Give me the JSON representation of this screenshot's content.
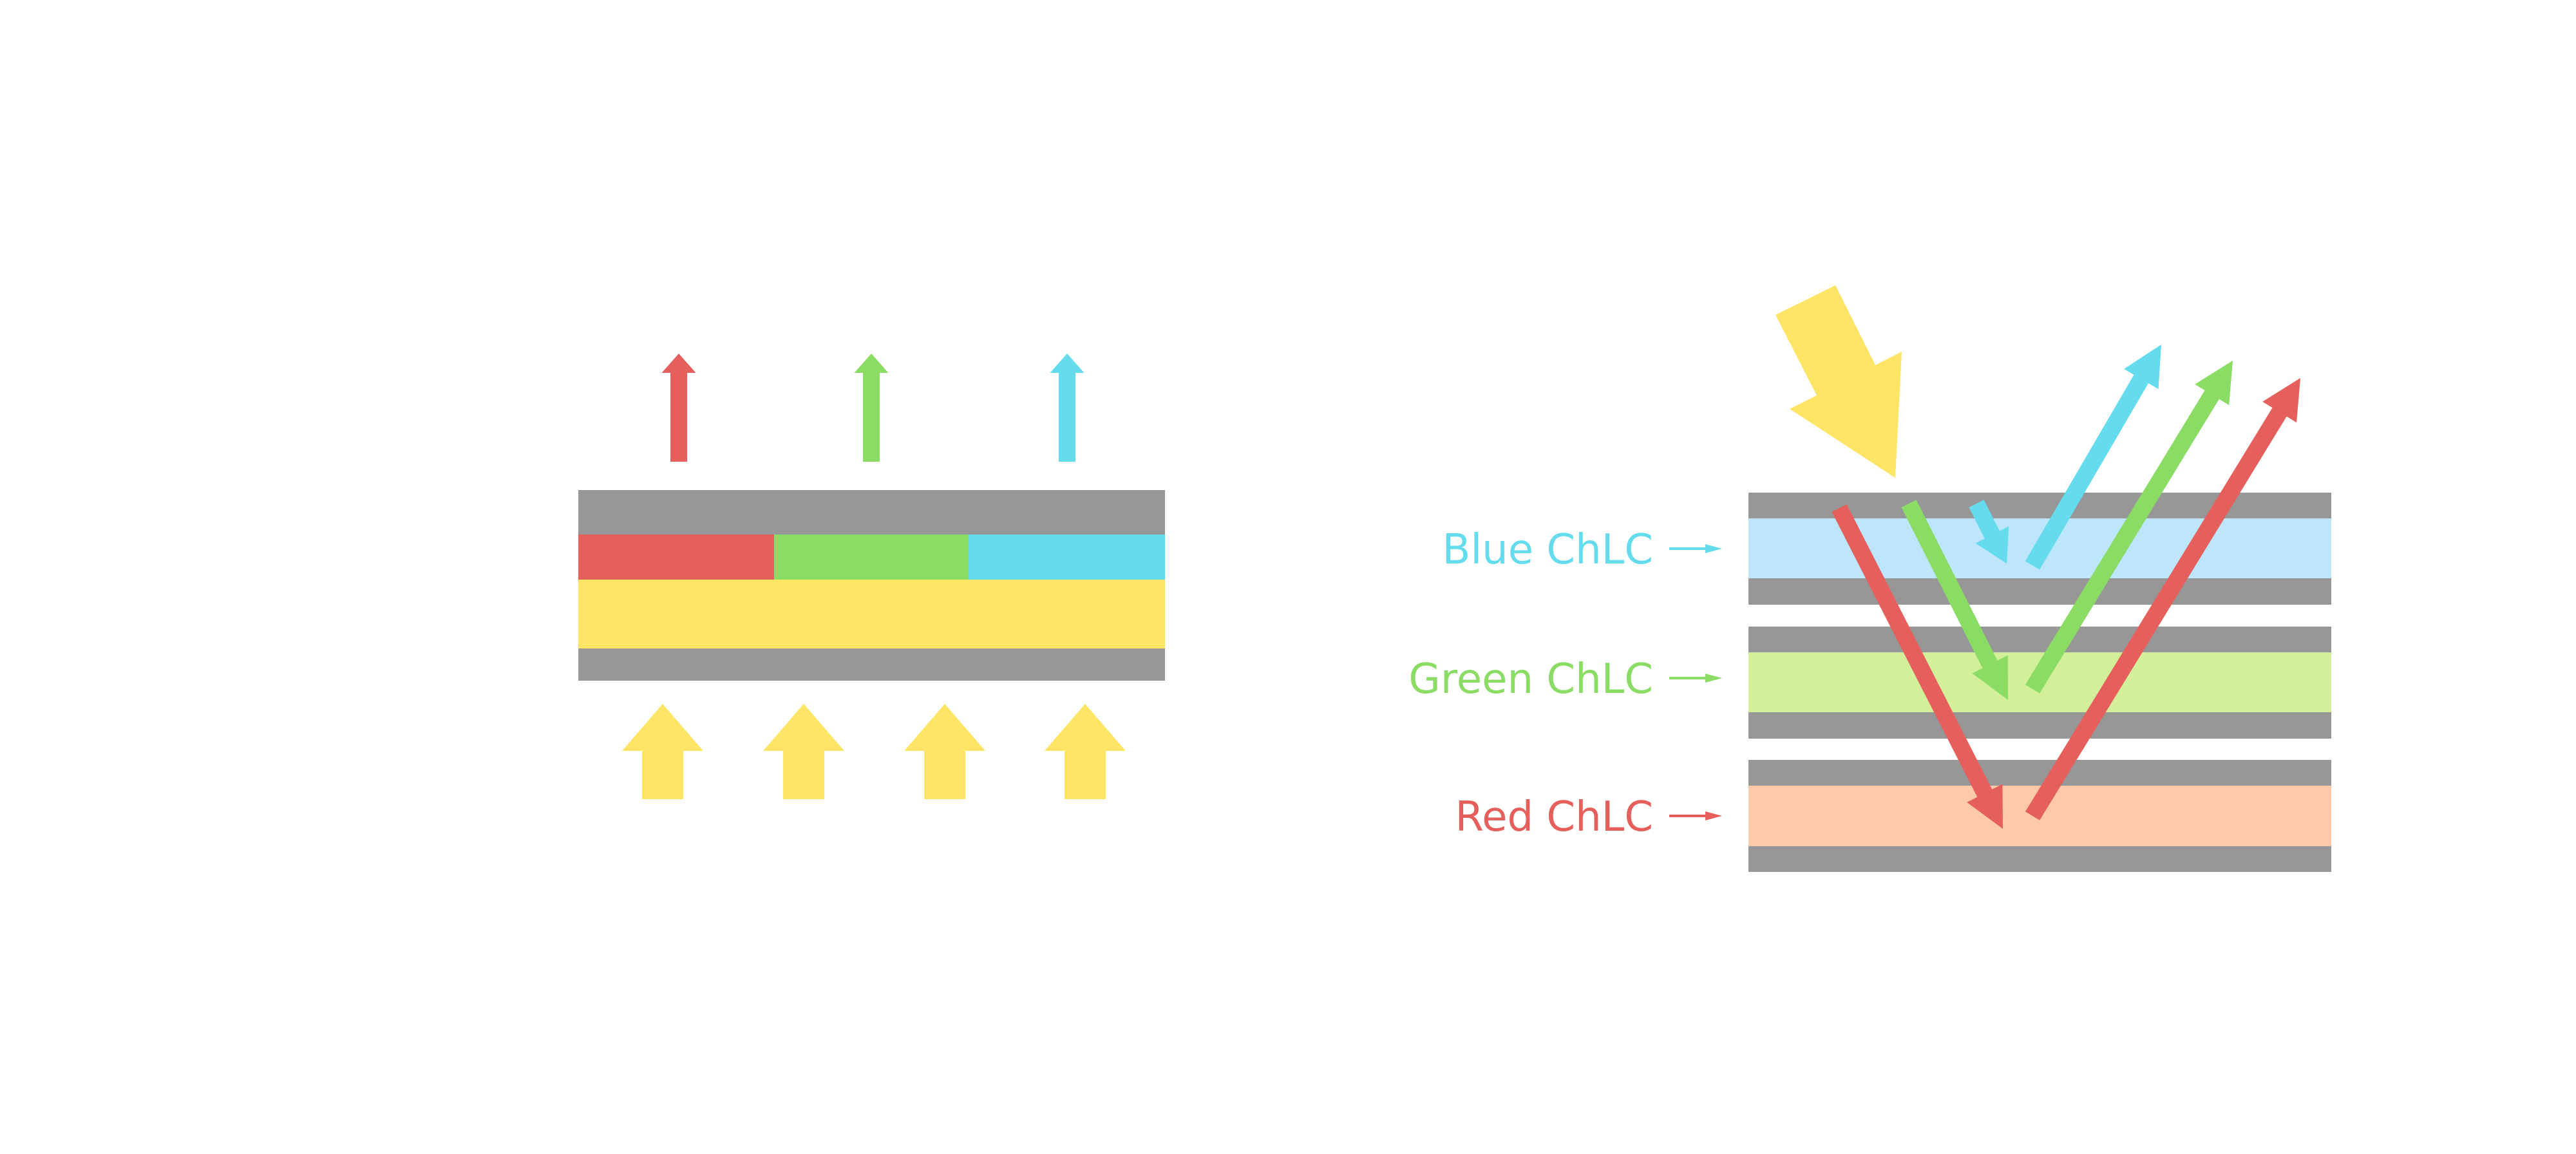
{
  "colors": {
    "substrate": "#979797",
    "red": "#e5605c",
    "green": "#8adc64",
    "blue": "#64dcee",
    "light": "#ffe566",
    "blue_layer": "#bde5fc",
    "green_layer": "#d3ef9a",
    "red_layer": "#fdc9aa"
  },
  "left_diagram": {
    "filter_segments": [
      "red",
      "green",
      "blue"
    ],
    "output_arrows": [
      "red",
      "green",
      "blue"
    ],
    "backlight_arrows": 4
  },
  "right_diagram": {
    "layers": [
      {
        "label": "Blue ChLC",
        "color_key": "blue"
      },
      {
        "label": "Green ChLC",
        "color_key": "green"
      },
      {
        "label": "Red ChLC",
        "color_key": "red"
      }
    ]
  }
}
